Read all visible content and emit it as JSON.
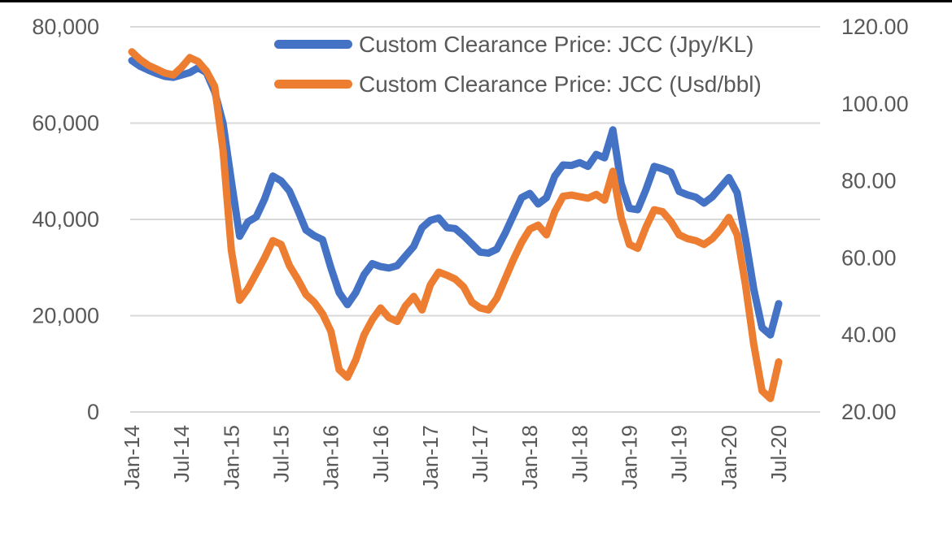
{
  "page": {
    "background_color": "#FFFFFF",
    "top_border_color": "#000000"
  },
  "chart_data": {
    "type": "line",
    "title": "",
    "grid": true,
    "legend_position": "top-center",
    "colors": {
      "gridline": "#D9D9D9",
      "axis_text": "#595959",
      "series_jpy": "#4472C4",
      "series_usd": "#ED7D31"
    },
    "x": [
      "Jan-14",
      "Feb-14",
      "Mar-14",
      "Apr-14",
      "May-14",
      "Jun-14",
      "Jul-14",
      "Aug-14",
      "Sep-14",
      "Oct-14",
      "Nov-14",
      "Dec-14",
      "Jan-15",
      "Feb-15",
      "Mar-15",
      "Apr-15",
      "May-15",
      "Jun-15",
      "Jul-15",
      "Aug-15",
      "Sep-15",
      "Oct-15",
      "Nov-15",
      "Dec-15",
      "Jan-16",
      "Feb-16",
      "Mar-16",
      "Apr-16",
      "May-16",
      "Jun-16",
      "Jul-16",
      "Aug-16",
      "Sep-16",
      "Oct-16",
      "Nov-16",
      "Dec-16",
      "Jan-17",
      "Feb-17",
      "Mar-17",
      "Apr-17",
      "May-17",
      "Jun-17",
      "Jul-17",
      "Aug-17",
      "Sep-17",
      "Oct-17",
      "Nov-17",
      "Dec-17",
      "Jan-18",
      "Feb-18",
      "Mar-18",
      "Apr-18",
      "May-18",
      "Jun-18",
      "Jul-18",
      "Aug-18",
      "Sep-18",
      "Oct-18",
      "Nov-18",
      "Dec-18",
      "Jan-19",
      "Feb-19",
      "Mar-19",
      "Apr-19",
      "May-19",
      "Jun-19",
      "Jul-19",
      "Aug-19",
      "Sep-19",
      "Oct-19",
      "Nov-19",
      "Dec-19",
      "Jan-20",
      "Feb-20",
      "Mar-20",
      "Apr-20",
      "May-20",
      "Jun-20",
      "Jul-20"
    ],
    "x_axis": {
      "tick_every": 6,
      "tick_labels": [
        "Jan-14",
        "Jul-14",
        "Jan-15",
        "Jul-15",
        "Jan-16",
        "Jul-16",
        "Jan-17",
        "Jul-17",
        "Jan-18",
        "Jul-18",
        "Jan-19",
        "Jul-19",
        "Jan-20",
        "Jul-20"
      ],
      "label_rotation_deg": -90
    },
    "y_axis_left": {
      "min": 0,
      "max": 80000,
      "ticks": [
        80000,
        60000,
        40000,
        20000,
        0
      ],
      "tick_labels": [
        "80,000",
        "60,000",
        "40,000",
        "20,000",
        "0"
      ]
    },
    "y_axis_right": {
      "min": 20,
      "max": 120,
      "ticks": [
        120,
        100,
        80,
        60,
        40,
        20
      ],
      "tick_labels": [
        "120.00",
        "100.00",
        "80.00",
        "60.00",
        "40.00",
        "20.00"
      ]
    },
    "series": [
      {
        "name": "Custom Clearance Price: JCC (Jpy/KL)",
        "axis": "left",
        "color": "#4472C4",
        "values": [
          73000,
          71800,
          71000,
          70300,
          69700,
          69500,
          70000,
          70500,
          71500,
          70500,
          66500,
          60000,
          48000,
          36500,
          39500,
          40500,
          44200,
          49000,
          48000,
          45900,
          42000,
          37800,
          36600,
          35800,
          30000,
          24800,
          22300,
          24800,
          28500,
          30800,
          30200,
          29900,
          30400,
          32400,
          34400,
          38300,
          39800,
          40300,
          38300,
          38100,
          36600,
          34900,
          33200,
          33000,
          33800,
          37100,
          40800,
          44500,
          45400,
          43200,
          44500,
          49000,
          51300,
          51200,
          51800,
          51000,
          53500,
          52800,
          58600,
          47500,
          42300,
          42000,
          46200,
          51000,
          50500,
          49800,
          45800,
          45100,
          44600,
          43400,
          44700,
          46700,
          48700,
          45500,
          36000,
          25500,
          17500,
          16000,
          22500
        ]
      },
      {
        "name": "Custom Clearance Price: JCC (Usd/bbl)",
        "axis": "right",
        "color": "#ED7D31",
        "values": [
          113.5,
          111.5,
          110,
          109,
          108,
          107.5,
          109.5,
          112,
          111,
          108.5,
          104.5,
          88,
          62,
          49,
          52,
          56,
          60,
          64.5,
          63.5,
          58,
          54.5,
          50.5,
          48.5,
          45.5,
          41,
          31,
          29,
          33.5,
          40,
          44,
          47,
          44.5,
          43.5,
          47.5,
          50,
          46.5,
          53,
          56.3,
          55.5,
          54.5,
          52.5,
          48.5,
          47,
          46.5,
          49.5,
          54.5,
          59.5,
          64,
          67.5,
          68.5,
          66,
          72,
          76,
          76.3,
          75.9,
          75.5,
          76.5,
          75,
          82.5,
          70.5,
          63.5,
          62.5,
          68,
          72.5,
          72,
          69.5,
          66,
          65,
          64.5,
          63.5,
          65,
          67.5,
          70.5,
          66,
          53,
          37.5,
          25.5,
          23.5,
          33
        ]
      }
    ]
  }
}
